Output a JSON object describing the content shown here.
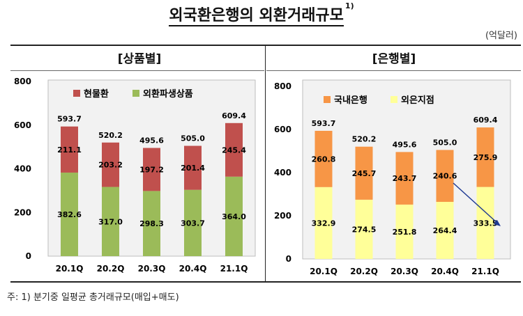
{
  "title": "외국환은행의 외환거래규모",
  "title_sup": "1)",
  "unit": "(억달러)",
  "footnote": "주: 1) 분기중 일평균 총거래규모(매입+매도)",
  "colors": {
    "spot": "#c0504d",
    "derivative": "#9bbb59",
    "domestic": "#f79646",
    "foreign": "#ffff99",
    "panel_bg": "#f2f2f2",
    "arrow": "#1f3a93"
  },
  "chart_data": [
    {
      "type": "bar",
      "stacked": true,
      "panel_title": "[상품별]",
      "categories": [
        "20.1Q",
        "20.2Q",
        "20.3Q",
        "20.4Q",
        "21.1Q"
      ],
      "ylim": [
        0,
        800
      ],
      "yticks": [
        "0",
        "200",
        "400",
        "600",
        "800"
      ],
      "legend": [
        "현물환",
        "외환파생상품"
      ],
      "series": [
        {
          "name": "외환파생상품",
          "values": [
            382.6,
            317.0,
            298.3,
            303.7,
            364.0
          ],
          "labels": [
            "382.6",
            "317.0",
            "298.3",
            "303.7",
            "364.0"
          ]
        },
        {
          "name": "현물환",
          "values": [
            211.1,
            203.2,
            197.2,
            201.4,
            245.4
          ],
          "labels": [
            "211.1",
            "203.2",
            "197.2",
            "201.4",
            "245.4"
          ]
        }
      ],
      "totals": [
        593.7,
        520.2,
        495.6,
        505.0,
        609.4
      ],
      "total_labels": [
        "593.7",
        "520.2",
        "495.6",
        "505.0",
        "609.4"
      ]
    },
    {
      "type": "bar",
      "stacked": true,
      "panel_title": "[은행별]",
      "categories": [
        "20.1Q",
        "20.2Q",
        "20.3Q",
        "20.4Q",
        "21.1Q"
      ],
      "ylim": [
        0,
        800
      ],
      "yticks": [
        "0",
        "200",
        "400",
        "600",
        "800"
      ],
      "legend": [
        "국내은행",
        "외은지점"
      ],
      "series": [
        {
          "name": "외은지점",
          "values": [
            332.9,
            274.5,
            251.8,
            264.4,
            333.5
          ],
          "labels": [
            "332.9",
            "274.5",
            "251.8",
            "264.4",
            "333.5"
          ]
        },
        {
          "name": "국내은행",
          "values": [
            260.8,
            245.7,
            243.7,
            240.6,
            275.9
          ],
          "labels": [
            "260.8",
            "245.7",
            "243.7",
            "240.6",
            "275.9"
          ]
        }
      ],
      "totals": [
        593.7,
        520.2,
        495.6,
        505.0,
        609.4
      ],
      "total_labels": [
        "593.7",
        "520.2",
        "495.6",
        "505.0",
        "609.4"
      ]
    }
  ]
}
